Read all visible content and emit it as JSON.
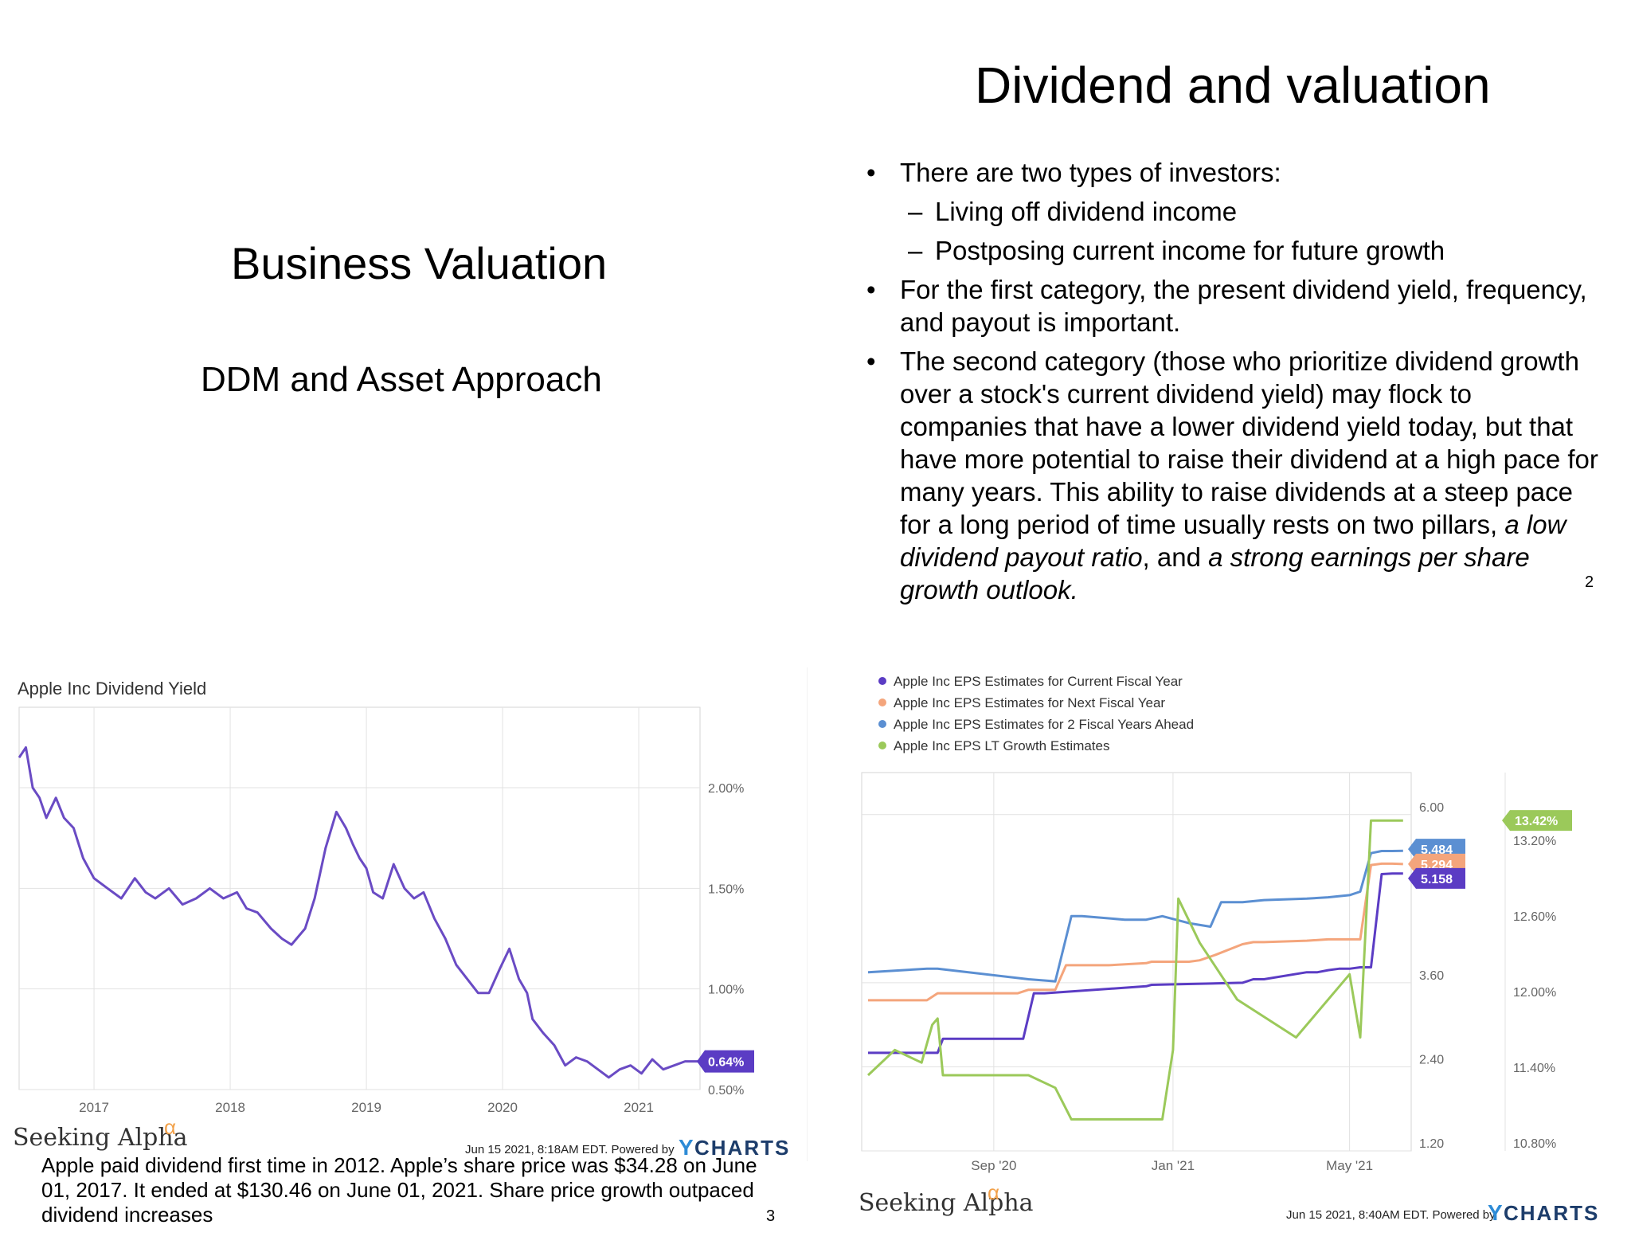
{
  "slide_left": {
    "title": "Business Valuation",
    "subtitle": "DDM and Asset Approach"
  },
  "slide_right": {
    "title": "Dividend and valuation",
    "bullet1": "There are two types of investors:",
    "sub1": "Living off dividend income",
    "sub2": "Postposing current income for future growth",
    "bullet2": "For the first category, the present dividend yield, frequency, and payout is important.",
    "bullet3_a": "The second category (those who prioritize dividend growth over a stock's current dividend yield) may flock to companies that have a lower dividend yield today, but that have more potential to raise their dividend at a high pace for many years. This ability to raise dividends at a steep pace for a long period of time usually rests on two pillars, ",
    "bullet3_b": "a low dividend payout ratio",
    "bullet3_c": ", and ",
    "bullet3_d": "a strong earnings per share growth outlook.",
    "page_number": "2"
  },
  "caption": {
    "text": "Apple paid dividend first time in 2012. Apple’s share price was $34.28 on June 01, 2017. It ended at $130.46 on June 01, 2021. Share price growth outpaced dividend increases",
    "page_number": "3"
  },
  "colors": {
    "yield_line": "#6a4bc4",
    "current_fy": "#5b3cc4",
    "next_fy": "#f4a57c",
    "two_fy": "#5b8fd2",
    "lt_growth": "#9bc95a",
    "grid": "#e2e2e2"
  },
  "chart_data": [
    {
      "type": "line",
      "title": "Apple Inc Dividend Yield",
      "x_ticks": [
        "2017",
        "2018",
        "2019",
        "2020",
        "2021"
      ],
      "y_ticks": [
        "2.00%",
        "1.50%",
        "1.00%",
        "0.50%"
      ],
      "ylim": [
        0.5,
        2.4
      ],
      "xlim": [
        2016.45,
        2021.45
      ],
      "last_value_label": "0.64%",
      "footer_brand": "Seeking Alpha",
      "footer_stamp": "Jun 15 2021, 8:18AM EDT.  Powered by",
      "footer_ycharts": "CHARTS",
      "series": [
        {
          "name": "Apple Inc Dividend Yield",
          "x": [
            2016.45,
            2016.5,
            2016.55,
            2016.6,
            2016.65,
            2016.72,
            2016.78,
            2016.85,
            2016.92,
            2017.0,
            2017.1,
            2017.2,
            2017.3,
            2017.38,
            2017.45,
            2017.55,
            2017.65,
            2017.75,
            2017.85,
            2017.95,
            2018.05,
            2018.12,
            2018.2,
            2018.3,
            2018.38,
            2018.45,
            2018.55,
            2018.62,
            2018.7,
            2018.78,
            2018.85,
            2018.9,
            2018.95,
            2019.0,
            2019.05,
            2019.12,
            2019.2,
            2019.28,
            2019.35,
            2019.42,
            2019.5,
            2019.58,
            2019.66,
            2019.74,
            2019.82,
            2019.9,
            2019.98,
            2020.05,
            2020.12,
            2020.18,
            2020.22,
            2020.3,
            2020.38,
            2020.46,
            2020.54,
            2020.62,
            2020.7,
            2020.78,
            2020.86,
            2020.94,
            2021.02,
            2021.1,
            2021.18,
            2021.26,
            2021.34,
            2021.45
          ],
          "y": [
            2.15,
            2.2,
            2.0,
            1.95,
            1.85,
            1.95,
            1.85,
            1.8,
            1.65,
            1.55,
            1.5,
            1.45,
            1.55,
            1.48,
            1.45,
            1.5,
            1.42,
            1.45,
            1.5,
            1.45,
            1.48,
            1.4,
            1.38,
            1.3,
            1.25,
            1.22,
            1.3,
            1.45,
            1.7,
            1.88,
            1.8,
            1.72,
            1.65,
            1.6,
            1.48,
            1.45,
            1.62,
            1.5,
            1.45,
            1.48,
            1.35,
            1.25,
            1.12,
            1.05,
            0.98,
            0.98,
            1.1,
            1.2,
            1.05,
            0.98,
            0.85,
            0.78,
            0.72,
            0.62,
            0.66,
            0.64,
            0.6,
            0.56,
            0.6,
            0.62,
            0.58,
            0.65,
            0.6,
            0.62,
            0.64,
            0.64
          ]
        }
      ]
    },
    {
      "type": "line",
      "title": "",
      "x_ticks": [
        "Sep '20",
        "Jan '21",
        "May '21"
      ],
      "y_ticks_left": [
        "6.00",
        "3.60",
        "2.40",
        "1.20"
      ],
      "y_ticks_right": [
        "13.20%",
        "12.60%",
        "12.00%",
        "11.40%",
        "10.80%"
      ],
      "ylim_left": [
        1.2,
        6.6
      ],
      "ylim_right": [
        10.8,
        13.8
      ],
      "xlim": [
        "2020-07-01",
        "2021-06-15"
      ],
      "end_labels": [
        "5.484",
        "5.294",
        "5.158",
        "13.42%"
      ],
      "footer_brand": "Seeking Alpha",
      "footer_stamp": "Jun 15 2021, 8:40AM EDT.  Powered by",
      "footer_ycharts": "CHARTS",
      "legend": [
        "Apple Inc EPS Estimates for Current Fiscal Year",
        "Apple Inc EPS Estimates for Next Fiscal Year",
        "Apple Inc EPS Estimates for 2 Fiscal Years Ahead",
        "Apple Inc EPS LT Growth Estimates"
      ],
      "series": [
        {
          "name": "Apple Inc EPS Estimates for Current Fiscal Year",
          "axis": "left",
          "x": [
            0,
            0.11,
            0.13,
            0.14,
            0.26,
            0.29,
            0.31,
            0.33,
            0.52,
            0.53,
            0.7,
            0.72,
            0.74,
            0.82,
            0.84,
            0.86,
            0.88,
            0.9,
            0.92,
            0.94,
            0.96,
            0.98,
            1.0
          ],
          "y": [
            2.6,
            2.6,
            2.6,
            2.8,
            2.8,
            2.8,
            3.45,
            3.45,
            3.55,
            3.57,
            3.6,
            3.65,
            3.65,
            3.75,
            3.75,
            3.78,
            3.8,
            3.8,
            3.82,
            3.82,
            5.15,
            5.16,
            5.158
          ]
        },
        {
          "name": "Apple Inc EPS Estimates for Next Fiscal Year",
          "axis": "left",
          "x": [
            0,
            0.11,
            0.13,
            0.28,
            0.3,
            0.35,
            0.37,
            0.45,
            0.52,
            0.53,
            0.6,
            0.62,
            0.65,
            0.7,
            0.72,
            0.74,
            0.82,
            0.86,
            0.9,
            0.92,
            0.94,
            0.96,
            0.98,
            1.0
          ],
          "y": [
            3.35,
            3.35,
            3.45,
            3.45,
            3.5,
            3.5,
            3.85,
            3.85,
            3.88,
            3.9,
            3.9,
            3.92,
            4.0,
            4.15,
            4.18,
            4.18,
            4.2,
            4.22,
            4.22,
            4.22,
            5.28,
            5.3,
            5.3,
            5.294
          ]
        },
        {
          "name": "Apple Inc EPS Estimates for 2 Fiscal Years Ahead",
          "axis": "left",
          "x": [
            0,
            0.11,
            0.13,
            0.3,
            0.35,
            0.38,
            0.4,
            0.48,
            0.52,
            0.55,
            0.6,
            0.64,
            0.66,
            0.7,
            0.74,
            0.82,
            0.86,
            0.9,
            0.92,
            0.94,
            0.96,
            0.98,
            1.0
          ],
          "y": [
            3.75,
            3.8,
            3.8,
            3.65,
            3.62,
            4.55,
            4.55,
            4.5,
            4.5,
            4.55,
            4.45,
            4.4,
            4.75,
            4.75,
            4.78,
            4.8,
            4.82,
            4.85,
            4.9,
            5.45,
            5.48,
            5.48,
            5.484
          ]
        },
        {
          "name": "Apple Inc EPS LT Growth Estimates",
          "axis": "right",
          "x": [
            0.0,
            0.05,
            0.1,
            0.12,
            0.13,
            0.14,
            0.3,
            0.35,
            0.38,
            0.55,
            0.57,
            0.58,
            0.62,
            0.69,
            0.8,
            0.9,
            0.92,
            0.94,
            1.0
          ],
          "y": [
            11.4,
            11.6,
            11.5,
            11.8,
            11.85,
            11.4,
            11.4,
            11.3,
            11.05,
            11.05,
            11.6,
            12.8,
            12.45,
            12.0,
            11.7,
            12.2,
            11.7,
            13.42,
            13.42
          ]
        }
      ]
    }
  ]
}
